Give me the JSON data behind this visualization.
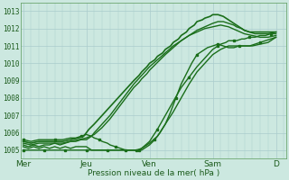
{
  "title": "",
  "xlabel": "Pression niveau de la mer( hPa )",
  "ylabel": "",
  "bg_color": "#cce8e0",
  "grid_color": "#aacccc",
  "line_color": "#1a6e1a",
  "xticklabels": [
    "Mer",
    "Jeu",
    "Ven",
    "Sam",
    "D"
  ],
  "xtick_positions": [
    0,
    48,
    96,
    144,
    192
  ],
  "ylim": [
    1004.5,
    1013.5
  ],
  "yticks": [
    1005,
    1006,
    1007,
    1008,
    1009,
    1010,
    1011,
    1012,
    1013
  ],
  "xlim": [
    -2,
    200
  ],
  "series": [
    {
      "x": [
        0,
        4,
        8,
        12,
        16,
        20,
        24,
        28,
        32,
        36,
        40,
        44,
        48,
        52,
        54,
        60,
        66,
        72,
        78,
        84,
        90,
        96,
        102,
        108,
        114,
        120,
        126,
        132,
        138,
        144,
        150,
        156,
        162,
        168,
        174,
        180,
        186,
        192
      ],
      "y": [
        1005.3,
        1005.2,
        1005.3,
        1005.2,
        1005.3,
        1005.3,
        1005.4,
        1005.3,
        1005.4,
        1005.5,
        1005.5,
        1005.6,
        1005.6,
        1005.8,
        1006.0,
        1006.5,
        1007.0,
        1007.6,
        1008.2,
        1008.8,
        1009.3,
        1009.8,
        1010.2,
        1010.6,
        1011.0,
        1011.3,
        1011.6,
        1011.8,
        1012.0,
        1012.1,
        1012.2,
        1012.1,
        1011.9,
        1011.7,
        1011.6,
        1011.5,
        1011.5,
        1011.6
      ],
      "marker": false,
      "lw": 1.0
    },
    {
      "x": [
        0,
        4,
        8,
        12,
        16,
        20,
        24,
        28,
        32,
        36,
        40,
        44,
        48,
        52,
        56,
        60,
        66,
        70,
        76,
        80,
        84,
        86,
        90,
        96,
        102,
        108,
        114,
        120,
        126,
        132,
        138,
        144,
        150,
        156,
        162,
        168,
        174,
        180,
        186,
        192
      ],
      "y": [
        1005.2,
        1005.1,
        1005.2,
        1005.1,
        1005.2,
        1005.1,
        1005.2,
        1005.1,
        1005.2,
        1005.1,
        1005.2,
        1005.2,
        1005.2,
        1005.0,
        1005.0,
        1005.0,
        1005.0,
        1005.0,
        1005.0,
        1005.0,
        1005.0,
        1005.0,
        1005.1,
        1005.4,
        1005.8,
        1006.5,
        1007.2,
        1008.0,
        1008.8,
        1009.5,
        1010.0,
        1010.5,
        1010.8,
        1011.0,
        1011.0,
        1011.0,
        1011.0,
        1011.1,
        1011.2,
        1011.5
      ],
      "marker": false,
      "lw": 1.0
    },
    {
      "x": [
        0,
        4,
        8,
        12,
        16,
        20,
        24,
        28,
        32,
        36,
        40,
        44,
        48,
        52,
        56,
        60,
        64,
        66,
        70,
        74,
        78,
        82,
        84,
        86,
        88,
        90,
        92,
        96,
        100,
        104,
        108,
        112,
        116,
        120,
        124,
        128,
        132,
        136,
        140,
        144,
        148,
        152,
        156,
        160,
        164,
        168,
        172,
        176,
        180,
        184,
        188,
        192
      ],
      "y": [
        1005.0,
        1005.0,
        1005.0,
        1005.0,
        1005.0,
        1005.0,
        1005.0,
        1005.0,
        1005.0,
        1005.0,
        1005.0,
        1005.0,
        1005.0,
        1005.0,
        1005.0,
        1005.0,
        1005.0,
        1005.0,
        1005.0,
        1005.0,
        1005.0,
        1005.0,
        1005.0,
        1005.0,
        1005.0,
        1005.0,
        1005.1,
        1005.3,
        1005.6,
        1006.0,
        1006.5,
        1007.2,
        1008.0,
        1008.8,
        1009.4,
        1010.0,
        1010.5,
        1010.7,
        1010.9,
        1011.0,
        1011.1,
        1011.0,
        1010.9,
        1010.9,
        1011.0,
        1011.0,
        1011.0,
        1011.1,
        1011.2,
        1011.3,
        1011.4,
        1011.5
      ],
      "marker": true,
      "lw": 1.0
    },
    {
      "x": [
        0,
        6,
        12,
        18,
        24,
        30,
        36,
        42,
        46,
        48,
        50,
        54,
        60,
        66,
        72,
        78,
        84,
        88,
        90,
        94,
        96,
        100,
        102,
        106,
        108,
        112,
        114,
        118,
        120,
        124,
        126,
        130,
        132,
        136,
        138,
        142,
        144,
        148,
        152,
        156,
        160,
        162,
        166,
        168,
        172,
        176,
        180,
        186,
        192
      ],
      "y": [
        1005.5,
        1005.4,
        1005.5,
        1005.5,
        1005.5,
        1005.5,
        1005.6,
        1005.7,
        1005.8,
        1006.0,
        1006.2,
        1006.5,
        1007.0,
        1007.5,
        1008.0,
        1008.5,
        1009.0,
        1009.3,
        1009.5,
        1009.8,
        1010.0,
        1010.2,
        1010.4,
        1010.6,
        1010.8,
        1011.0,
        1011.2,
        1011.4,
        1011.6,
        1011.8,
        1012.0,
        1012.2,
        1012.4,
        1012.5,
        1012.6,
        1012.7,
        1012.8,
        1012.8,
        1012.7,
        1012.5,
        1012.3,
        1012.2,
        1012.0,
        1011.9,
        1011.8,
        1011.8,
        1011.8,
        1011.8,
        1011.8
      ],
      "marker": false,
      "lw": 1.2
    },
    {
      "x": [
        0,
        6,
        12,
        18,
        24,
        30,
        36,
        42,
        48,
        54,
        60,
        66,
        72,
        78,
        84,
        88,
        90,
        94,
        96,
        100,
        104,
        108,
        114,
        120,
        126,
        132,
        138,
        144,
        148,
        152,
        156,
        160,
        162,
        166,
        168,
        172,
        176,
        180,
        186,
        192
      ],
      "y": [
        1005.4,
        1005.3,
        1005.4,
        1005.4,
        1005.4,
        1005.4,
        1005.5,
        1005.6,
        1005.7,
        1005.9,
        1006.3,
        1006.8,
        1007.4,
        1008.0,
        1008.6,
        1008.9,
        1009.1,
        1009.4,
        1009.6,
        1009.9,
        1010.2,
        1010.5,
        1010.9,
        1011.3,
        1011.6,
        1011.9,
        1012.1,
        1012.3,
        1012.4,
        1012.4,
        1012.3,
        1012.2,
        1012.1,
        1012.0,
        1011.9,
        1011.8,
        1011.7,
        1011.7,
        1011.7,
        1011.8
      ],
      "marker": false,
      "lw": 1.0
    },
    {
      "x": [
        0,
        6,
        12,
        18,
        24,
        30,
        36,
        40,
        44,
        48,
        52,
        54,
        58,
        60,
        64,
        66,
        70,
        74,
        78,
        82,
        86,
        88,
        90,
        96,
        102,
        108,
        114,
        120,
        126,
        132,
        138,
        144,
        148,
        150,
        154,
        156,
        160,
        162,
        166,
        168,
        172,
        176,
        180,
        184,
        188,
        192
      ],
      "y": [
        1005.6,
        1005.5,
        1005.6,
        1005.6,
        1005.6,
        1005.6,
        1005.7,
        1005.7,
        1005.8,
        1005.9,
        1005.8,
        1005.7,
        1005.6,
        1005.5,
        1005.4,
        1005.3,
        1005.2,
        1005.1,
        1005.0,
        1005.0,
        1005.0,
        1005.0,
        1005.1,
        1005.5,
        1006.2,
        1007.0,
        1007.8,
        1008.6,
        1009.2,
        1009.8,
        1010.3,
        1010.8,
        1011.0,
        1011.1,
        1011.2,
        1011.3,
        1011.3,
        1011.3,
        1011.4,
        1011.4,
        1011.5,
        1011.5,
        1011.6,
        1011.6,
        1011.7,
        1011.7
      ],
      "marker": true,
      "lw": 1.0
    }
  ],
  "total_hours": 192
}
